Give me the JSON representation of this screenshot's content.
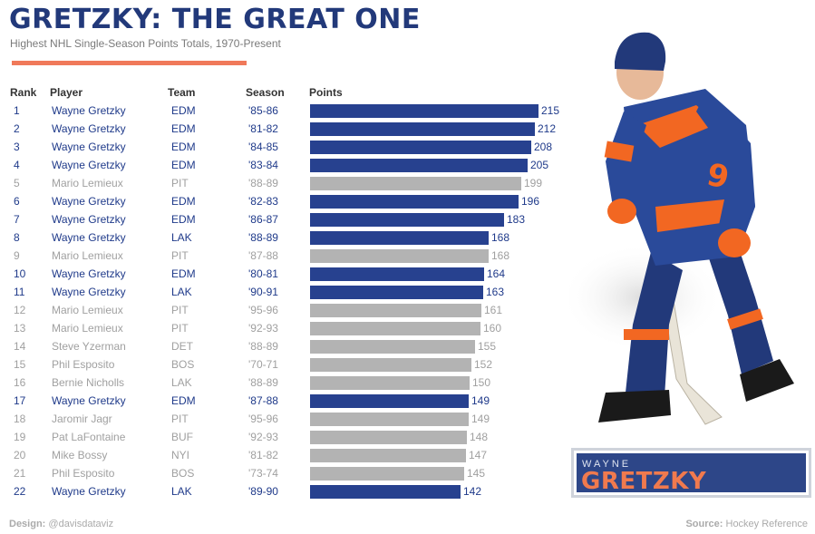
{
  "header": {
    "title": "GRETZKY: THE GREAT ONE",
    "subtitle": "Highest NHL Single-Season Points Totals, 1970-Present"
  },
  "columns": {
    "rank": "Rank",
    "player": "Player",
    "team": "Team",
    "season": "Season",
    "points": "Points"
  },
  "colors": {
    "title": "#22397a",
    "gretzky_text": "#1f3a8a",
    "gretzky_bar": "#27418f",
    "other_text": "#a0a0a0",
    "other_bar": "#b3b3b3",
    "accent": "#f0795a",
    "badge_bg": "#2d4688",
    "badge_name": "#f07a4e"
  },
  "badge": {
    "first": "WAYNE",
    "last": "GRETZKY"
  },
  "footer": {
    "design_label": "Design:",
    "design_value": "@davisdataviz",
    "source_label": "Source:",
    "source_value": "Hockey Reference"
  },
  "chart_data": {
    "type": "bar",
    "title": "GRETZKY: THE GREAT ONE",
    "subtitle": "Highest NHL Single-Season Points Totals, 1970-Present",
    "orientation": "horizontal",
    "highlight_player": "Wayne Gretzky",
    "rows": [
      {
        "rank": "1",
        "player": "Wayne Gretzky",
        "team": "EDM",
        "season": "'85-86",
        "points": 215
      },
      {
        "rank": "2",
        "player": "Wayne Gretzky",
        "team": "EDM",
        "season": "'81-82",
        "points": 212
      },
      {
        "rank": "3",
        "player": "Wayne Gretzky",
        "team": "EDM",
        "season": "'84-85",
        "points": 208
      },
      {
        "rank": "4",
        "player": "Wayne Gretzky",
        "team": "EDM",
        "season": "'83-84",
        "points": 205
      },
      {
        "rank": "5",
        "player": "Mario Lemieux",
        "team": "PIT",
        "season": "'88-89",
        "points": 199
      },
      {
        "rank": "6",
        "player": "Wayne Gretzky",
        "team": "EDM",
        "season": "'82-83",
        "points": 196
      },
      {
        "rank": "7",
        "player": "Wayne Gretzky",
        "team": "EDM",
        "season": "'86-87",
        "points": 183
      },
      {
        "rank": "8",
        "player": "Wayne Gretzky",
        "team": "LAK",
        "season": "'88-89",
        "points": 168
      },
      {
        "rank": "9",
        "player": "Mario Lemieux",
        "team": "PIT",
        "season": "'87-88",
        "points": 168
      },
      {
        "rank": "10",
        "player": "Wayne Gretzky",
        "team": "EDM",
        "season": "'80-81",
        "points": 164
      },
      {
        "rank": "11",
        "player": "Wayne Gretzky",
        "team": "LAK",
        "season": "'90-91",
        "points": 163
      },
      {
        "rank": "12",
        "player": "Mario Lemieux",
        "team": "PIT",
        "season": "'95-96",
        "points": 161
      },
      {
        "rank": "13",
        "player": "Mario Lemieux",
        "team": "PIT",
        "season": "'92-93",
        "points": 160
      },
      {
        "rank": "14",
        "player": "Steve Yzerman",
        "team": "DET",
        "season": "'88-89",
        "points": 155
      },
      {
        "rank": "15",
        "player": "Phil Esposito",
        "team": "BOS",
        "season": "'70-71",
        "points": 152
      },
      {
        "rank": "16",
        "player": "Bernie Nicholls",
        "team": "LAK",
        "season": "'88-89",
        "points": 150
      },
      {
        "rank": "17",
        "player": "Wayne Gretzky",
        "team": "EDM",
        "season": "'87-88",
        "points": 149
      },
      {
        "rank": "18",
        "player": "Jaromir Jagr",
        "team": "PIT",
        "season": "'95-96",
        "points": 149
      },
      {
        "rank": "19",
        "player": "Pat LaFontaine",
        "team": "BUF",
        "season": "'92-93",
        "points": 148
      },
      {
        "rank": "20",
        "player": "Mike Bossy",
        "team": "NYI",
        "season": "'81-82",
        "points": 147
      },
      {
        "rank": "21",
        "player": "Phil Esposito",
        "team": "BOS",
        "season": "'73-74",
        "points": 145
      },
      {
        "rank": "22",
        "player": "Wayne Gretzky",
        "team": "LAK",
        "season": "'89-90",
        "points": 142
      }
    ]
  }
}
